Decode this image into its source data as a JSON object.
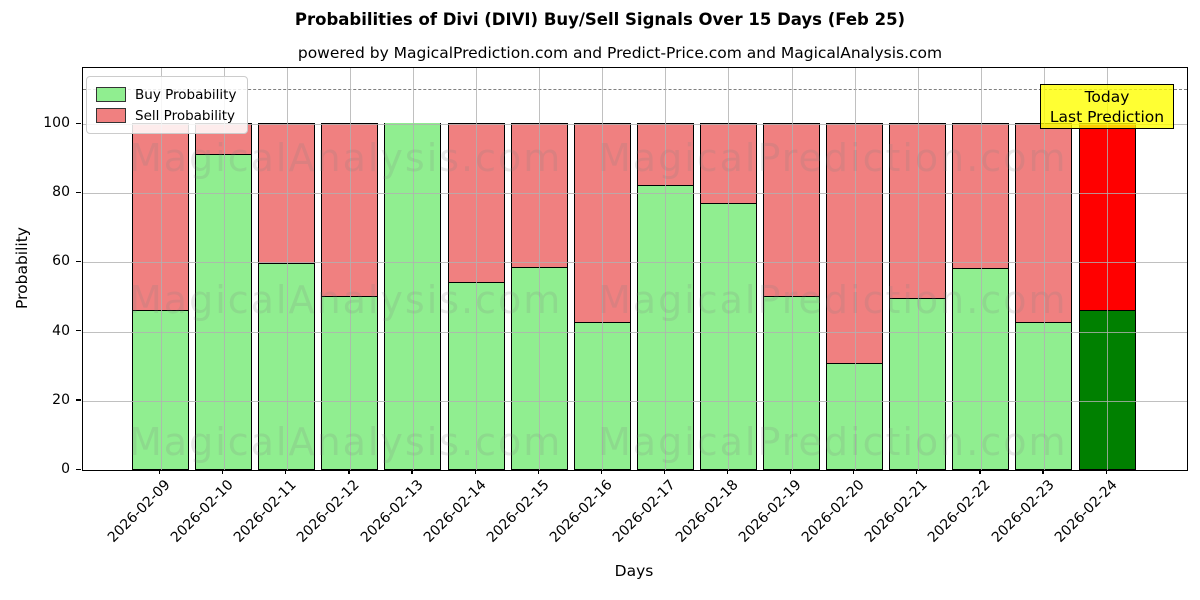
{
  "header": {
    "title": "Probabilities of Divi (DIVI) Buy/Sell Signals Over 15 Days (Feb 25)",
    "subtitle": "powered by MagicalPrediction.com and Predict-Price.com and MagicalAnalysis.com"
  },
  "axes": {
    "xlabel": "Days",
    "ylabel": "Probability"
  },
  "legend": {
    "buy": "Buy Probability",
    "sell": "Sell Probability"
  },
  "annotation": {
    "line1": "Today",
    "line2": "Last Prediction"
  },
  "watermark": {
    "left_text": "MagicalAnalysis.com",
    "right_text": "MagicalPrediction.com"
  },
  "colors": {
    "buy_normal": "#90EE90",
    "sell_normal": "#F08080",
    "buy_today": "#008000",
    "sell_today": "#FF0000",
    "bar_edge": "#000000",
    "grid": "#b0b0b0",
    "dashed_line": "#7f7f7f",
    "annotation_bg": "#FFFF00"
  },
  "chart_data": {
    "type": "bar",
    "stacked": true,
    "title": "Probabilities of Divi (DIVI) Buy/Sell Signals Over 15 Days (Feb 25)",
    "subtitle": "powered by MagicalPrediction.com and Predict-Price.com and MagicalAnalysis.com",
    "xlabel": "Days",
    "ylabel": "Probability",
    "categories": [
      "2026-02-09",
      "2026-02-10",
      "2026-02-11",
      "2026-02-12",
      "2026-02-13",
      "2026-02-14",
      "2026-02-15",
      "2026-02-16",
      "2026-02-17",
      "2026-02-18",
      "2026-02-19",
      "2026-02-20",
      "2026-02-21",
      "2026-02-22",
      "2026-02-23",
      "2026-02-24"
    ],
    "series": [
      {
        "name": "Buy Probability",
        "values": [
          46,
          91,
          59.5,
          50,
          100,
          54,
          58.5,
          42.5,
          82,
          77,
          50,
          30.5,
          49.5,
          58,
          42.5,
          46
        ]
      },
      {
        "name": "Sell Probability",
        "values": [
          54,
          9,
          40.5,
          50,
          0,
          46,
          41.5,
          57.5,
          18,
          23,
          50,
          69.5,
          50.5,
          42,
          57.5,
          54
        ]
      }
    ],
    "today_index": 15,
    "yticks": [
      0,
      20,
      40,
      60,
      80,
      100
    ],
    "ylim": [
      0,
      116
    ],
    "dashed_line_y": 110,
    "grid": true,
    "legend_position": "upper left"
  }
}
